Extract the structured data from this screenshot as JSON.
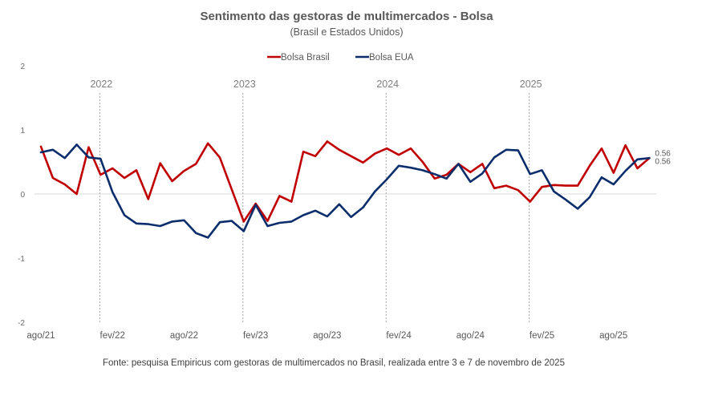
{
  "chart_data": {
    "type": "line",
    "title": "Sentimento das gestoras de multimercados - Bolsa",
    "subtitle": "(Brasil e Estados Unidos)",
    "xlabel": "",
    "ylabel": "",
    "ylim": [
      -2,
      2
    ],
    "yticks": [
      "2",
      "1",
      "0",
      "-1",
      "-2"
    ],
    "ytick_values": [
      2,
      1,
      0,
      -1,
      -2
    ],
    "grid": false,
    "zero_line": true,
    "legend_position": "top-center",
    "x_start": "ago/21",
    "x_end": "nov/25",
    "x_count": 52,
    "xticks": [
      {
        "label": "ago/21",
        "index": 0
      },
      {
        "label": "fev/22",
        "index": 6
      },
      {
        "label": "ago/22",
        "index": 12
      },
      {
        "label": "fev/23",
        "index": 18
      },
      {
        "label": "ago/23",
        "index": 24
      },
      {
        "label": "fev/24",
        "index": 30
      },
      {
        "label": "ago/24",
        "index": 36
      },
      {
        "label": "fev/25",
        "index": 42
      },
      {
        "label": "ago/25",
        "index": 48
      }
    ],
    "year_markers": [
      {
        "label": "2022",
        "index": 5
      },
      {
        "label": "2023",
        "index": 17
      },
      {
        "label": "2024",
        "index": 29
      },
      {
        "label": "2025",
        "index": 41
      }
    ],
    "series": [
      {
        "name": "Bolsa Brasil",
        "color": "#C00000",
        "values": [
          0.74,
          0.25,
          0.15,
          0.0,
          0.73,
          0.3,
          0.4,
          0.25,
          0.37,
          -0.08,
          0.48,
          0.2,
          0.36,
          0.47,
          0.79,
          0.57,
          0.07,
          -0.43,
          -0.15,
          -0.42,
          -0.03,
          -0.12,
          0.66,
          0.59,
          0.82,
          0.69,
          0.59,
          0.49,
          0.63,
          0.71,
          0.61,
          0.71,
          0.5,
          0.24,
          0.3,
          0.47,
          0.34,
          0.47,
          0.09,
          0.13,
          0.06,
          -0.12,
          0.11,
          0.14,
          0.13,
          0.13,
          0.44,
          0.71,
          0.33,
          0.76,
          0.4,
          0.56
        ],
        "last_label": "0.56"
      },
      {
        "name": "Bolsa EUA",
        "color": "#0C2D6B",
        "values": [
          0.65,
          0.69,
          0.56,
          0.77,
          0.57,
          0.55,
          0.03,
          -0.33,
          -0.46,
          -0.47,
          -0.5,
          -0.43,
          -0.41,
          -0.61,
          -0.68,
          -0.44,
          -0.42,
          -0.58,
          -0.17,
          -0.5,
          -0.45,
          -0.43,
          -0.33,
          -0.26,
          -0.35,
          -0.16,
          -0.36,
          -0.21,
          0.04,
          0.23,
          0.44,
          0.41,
          0.37,
          0.31,
          0.24,
          0.47,
          0.19,
          0.32,
          0.57,
          0.69,
          0.68,
          0.31,
          0.37,
          0.04,
          -0.09,
          -0.23,
          -0.05,
          0.26,
          0.15,
          0.36,
          0.54,
          0.56
        ],
        "last_label": "0.56"
      }
    ],
    "source": "Fonte: pesquisa Empiricus com gestoras de multimercados no Brasil, realizada entre 3 e 7 de novembro de 2025"
  }
}
